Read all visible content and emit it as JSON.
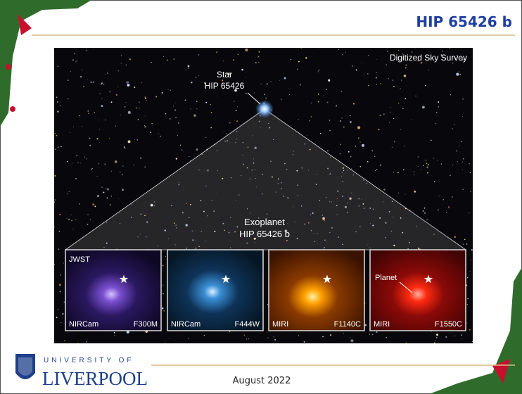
{
  "header": {
    "title": "HIP 65426 b"
  },
  "image": {
    "credit": "Digitized Sky Survey",
    "star_label": [
      "Star",
      "HIP 65426"
    ],
    "planet_label": [
      "Exoplanet",
      "HIP 65426 b"
    ],
    "telescope": "JWST",
    "planet_marker": "Planet",
    "panels": [
      {
        "instrument": "NIRCam",
        "filter": "F300M"
      },
      {
        "instrument": "NIRCam",
        "filter": "F444W"
      },
      {
        "instrument": "MIRI",
        "filter": "F1140C"
      },
      {
        "instrument": "MIRI",
        "filter": "F1550C"
      }
    ]
  },
  "footer": {
    "university_top": "UNIVERSITY OF",
    "university": "LIVERPOOL",
    "date": "August 2022"
  }
}
